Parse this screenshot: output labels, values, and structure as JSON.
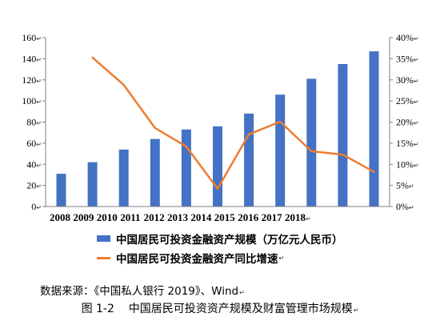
{
  "paragraph_mark": "↵",
  "chart_data": {
    "type": "bar",
    "title": "",
    "xlabel": "",
    "ylabel": "",
    "categories": [
      "2008",
      "2009",
      "2010",
      "2011",
      "2012",
      "2013",
      "2014",
      "2015",
      "2016",
      "2017",
      "2018"
    ],
    "series": [
      {
        "name": "中国居民可投资金融资产规模（万亿元人民币）",
        "type": "bar",
        "axis": "left",
        "color": "#4472C4",
        "values": [
          31,
          42,
          54,
          64,
          73,
          76,
          88,
          106,
          121,
          135,
          147
        ]
      },
      {
        "name": "中国居民可投资金融资产同比增速",
        "type": "line",
        "axis": "right",
        "color": "#ED7D31",
        "values": [
          null,
          35.3,
          28.8,
          18.6,
          14.2,
          4.2,
          17.1,
          20.1,
          13.1,
          12.3,
          8.2
        ]
      }
    ],
    "y_left": {
      "ylim": [
        0,
        160
      ],
      "ticks": [
        0,
        20,
        40,
        60,
        80,
        100,
        120,
        140,
        160
      ],
      "tick_labels": [
        "0",
        "20",
        "40",
        "60",
        "80",
        "100",
        "120",
        "140",
        "160"
      ]
    },
    "y_right": {
      "ylim": [
        0,
        40
      ],
      "unit": "%",
      "ticks": [
        0,
        5,
        10,
        15,
        20,
        25,
        30,
        35,
        40
      ],
      "tick_labels": [
        "0%",
        "5%",
        "10%",
        "15%",
        "20%",
        "25%",
        "30%",
        "35%",
        "40%"
      ]
    },
    "grid": false,
    "legend": "bottom"
  },
  "source": "数据来源：《中国私人银行 2019》、Wind",
  "caption": "图 1-2    中国居民可投资资产规模及财富管理市场规模"
}
